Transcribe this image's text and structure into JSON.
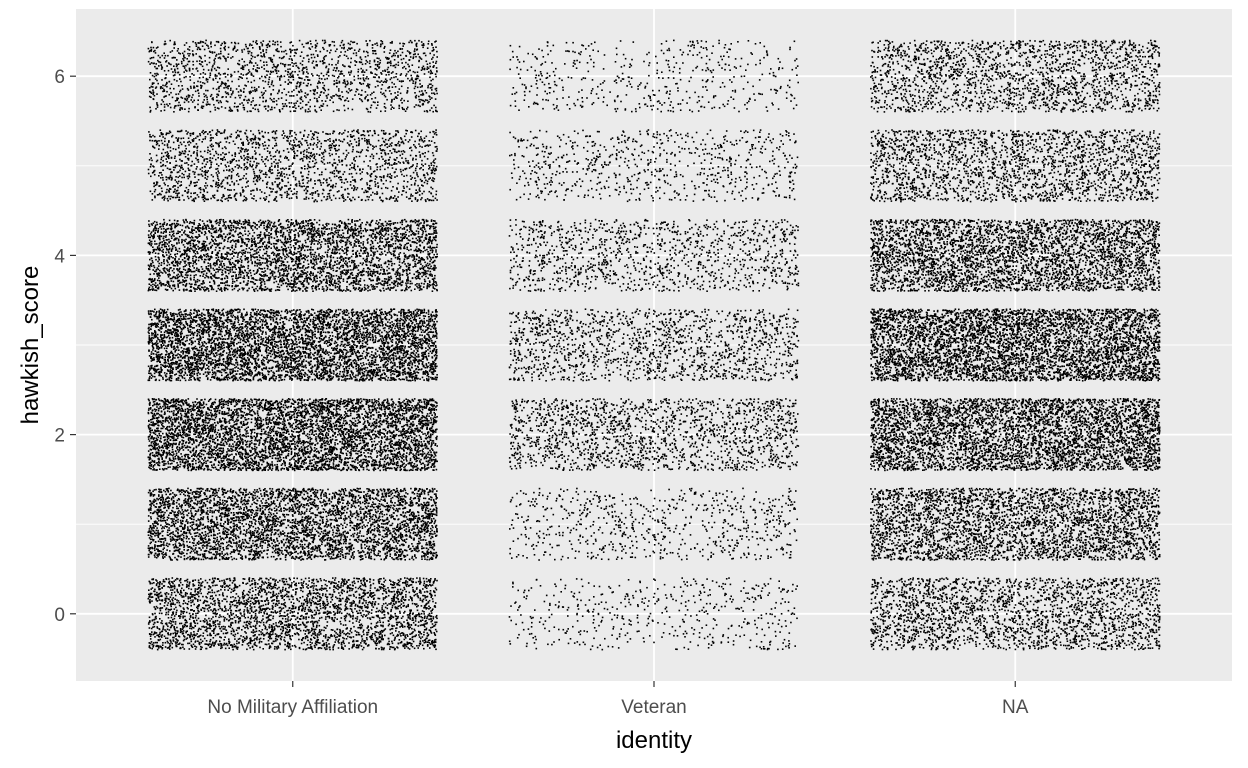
{
  "chart_data": {
    "type": "scatter",
    "subtype": "jitter",
    "title": "",
    "xlabel": "identity",
    "ylabel": "hawkish_score",
    "categories": [
      "No Military Affiliation",
      "Veteran",
      "NA"
    ],
    "y_levels": [
      0,
      1,
      2,
      3,
      4,
      5,
      6
    ],
    "yticks": [
      0,
      2,
      4,
      6
    ],
    "ylim": [
      -0.75,
      6.75
    ],
    "jitter": {
      "x": 0.4,
      "y": 0.4
    },
    "approx_point_counts": [
      [
        3200,
        4200,
        5200,
        5200,
        3800,
        1900,
        1700
      ],
      [
        500,
        700,
        1700,
        1500,
        1200,
        750,
        500
      ],
      [
        2300,
        3400,
        4600,
        5000,
        3800,
        2200,
        2000
      ]
    ],
    "point_color": "#000000",
    "panel_background": "#ebebeb",
    "grid": true
  }
}
